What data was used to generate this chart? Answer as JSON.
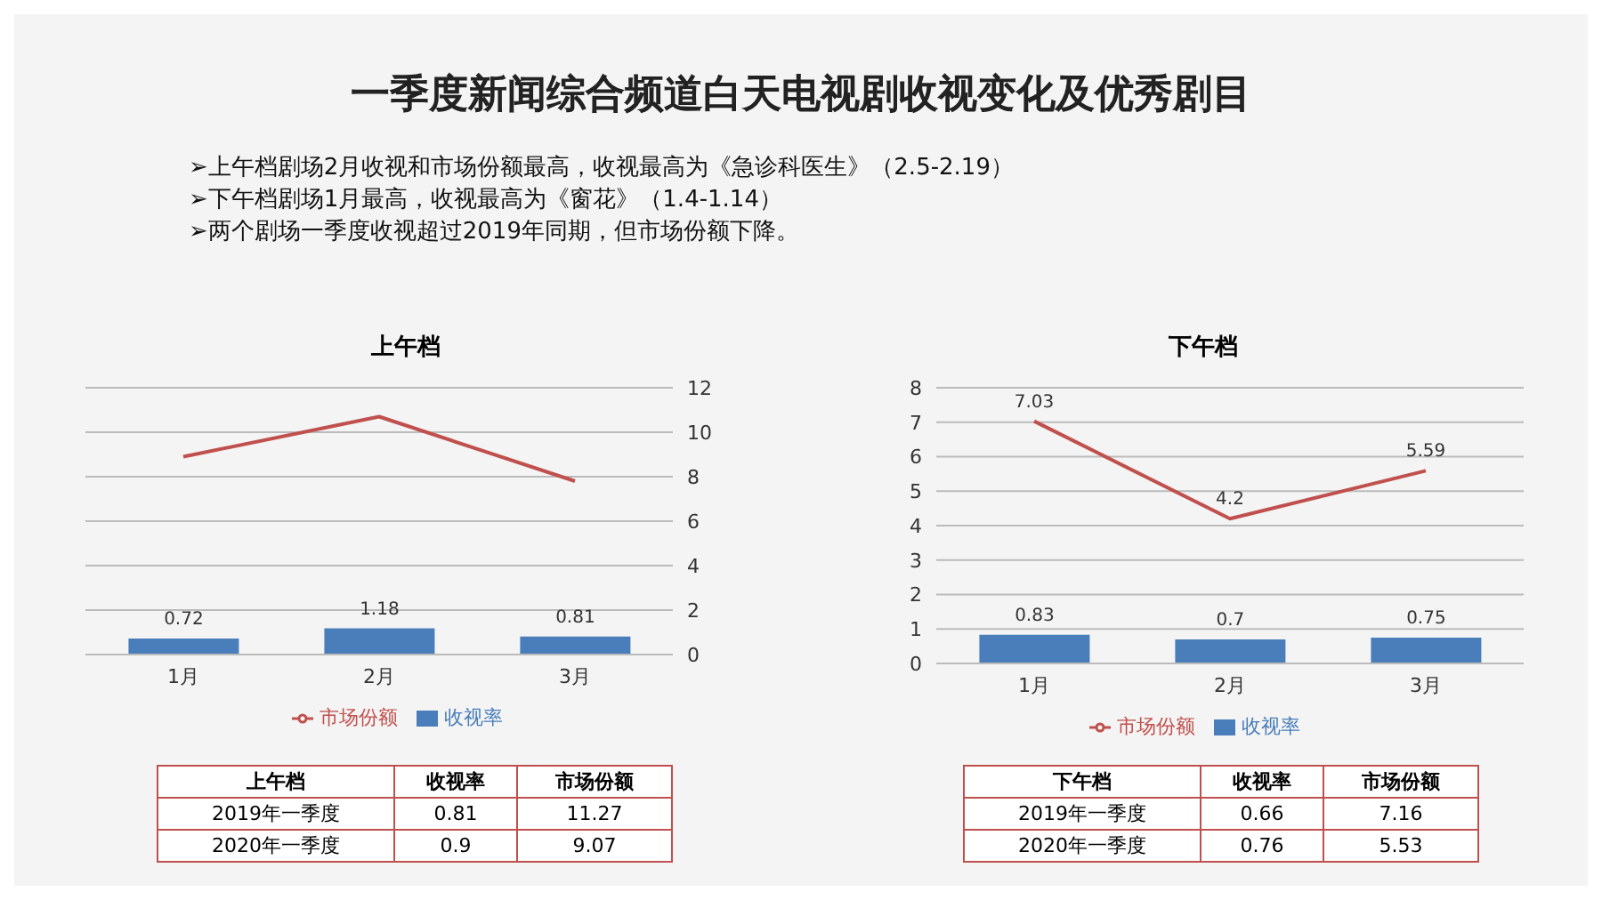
{
  "chart_data": [
    {
      "type": "other",
      "title": "一季度新闻综合频道白天电视剧收视变化及优秀剧目",
      "annotations": [
        "➢上午档剧场2月收视和市场份额最高，收视最高为《急诊科医生》（2.5-2.19）",
        "➢下午档剧场1月最高，收视最高为《窗花》（1.4-1.14）",
        "➢两个剧场一季度收视超过2019年同期，但市场份额下降。"
      ]
    },
    {
      "type": "bar",
      "title": "上午档",
      "categories": [
        "1月",
        "2月",
        "3月"
      ],
      "series": [
        {
          "name": "收视率",
          "type": "bar",
          "color": "#4a7ebb",
          "values": [
            0.72,
            1.18,
            0.81
          ],
          "value_labels": [
            "0.72",
            "1.18",
            "0.81"
          ]
        },
        {
          "name": "市场份额",
          "type": "line",
          "color": "#c0504d",
          "values": [
            8.9,
            10.7,
            7.8
          ]
        }
      ],
      "ylim": [
        0,
        12
      ],
      "yticks": [
        0,
        2,
        4,
        6,
        8,
        10,
        12
      ],
      "grid": "y",
      "legend": "bottom",
      "marker": "none",
      "line_style": "solid"
    },
    {
      "type": "bar",
      "title": "下午档",
      "categories": [
        "1月",
        "2月",
        "3月"
      ],
      "series": [
        {
          "name": "收视率",
          "type": "bar",
          "color": "#4a7ebb",
          "values": [
            0.83,
            0.7,
            0.75
          ]
        },
        {
          "name": "市场份额",
          "type": "line",
          "color": "#c0504d",
          "values": [
            7.03,
            4.2,
            5.59
          ]
        }
      ],
      "ylim": [
        0,
        8
      ],
      "yticks": [
        0,
        1,
        2,
        3,
        4,
        5,
        6,
        7,
        8
      ],
      "grid": "y",
      "legend": "bottom",
      "marker": "none",
      "line_style": "solid",
      "data_labels": true
    },
    {
      "type": "other",
      "title": "上午档",
      "categories": [
        "2019年一季度",
        "2020年一季度"
      ],
      "series": [
        {
          "name": "收视率",
          "values": [
            0.81,
            0.9
          ]
        },
        {
          "name": "市场份额",
          "values": [
            11.27,
            9.07
          ]
        }
      ],
      "data_labels": true
    },
    {
      "type": "other",
      "title": "下午档",
      "categories": [
        "2019年一季度",
        "2020年一季度"
      ],
      "series": [
        {
          "name": "收视率",
          "values": [
            0.66,
            0.76
          ]
        },
        {
          "name": "市场份额",
          "values": [
            7.16,
            5.53
          ]
        }
      ],
      "data_labels": true
    }
  ]
}
